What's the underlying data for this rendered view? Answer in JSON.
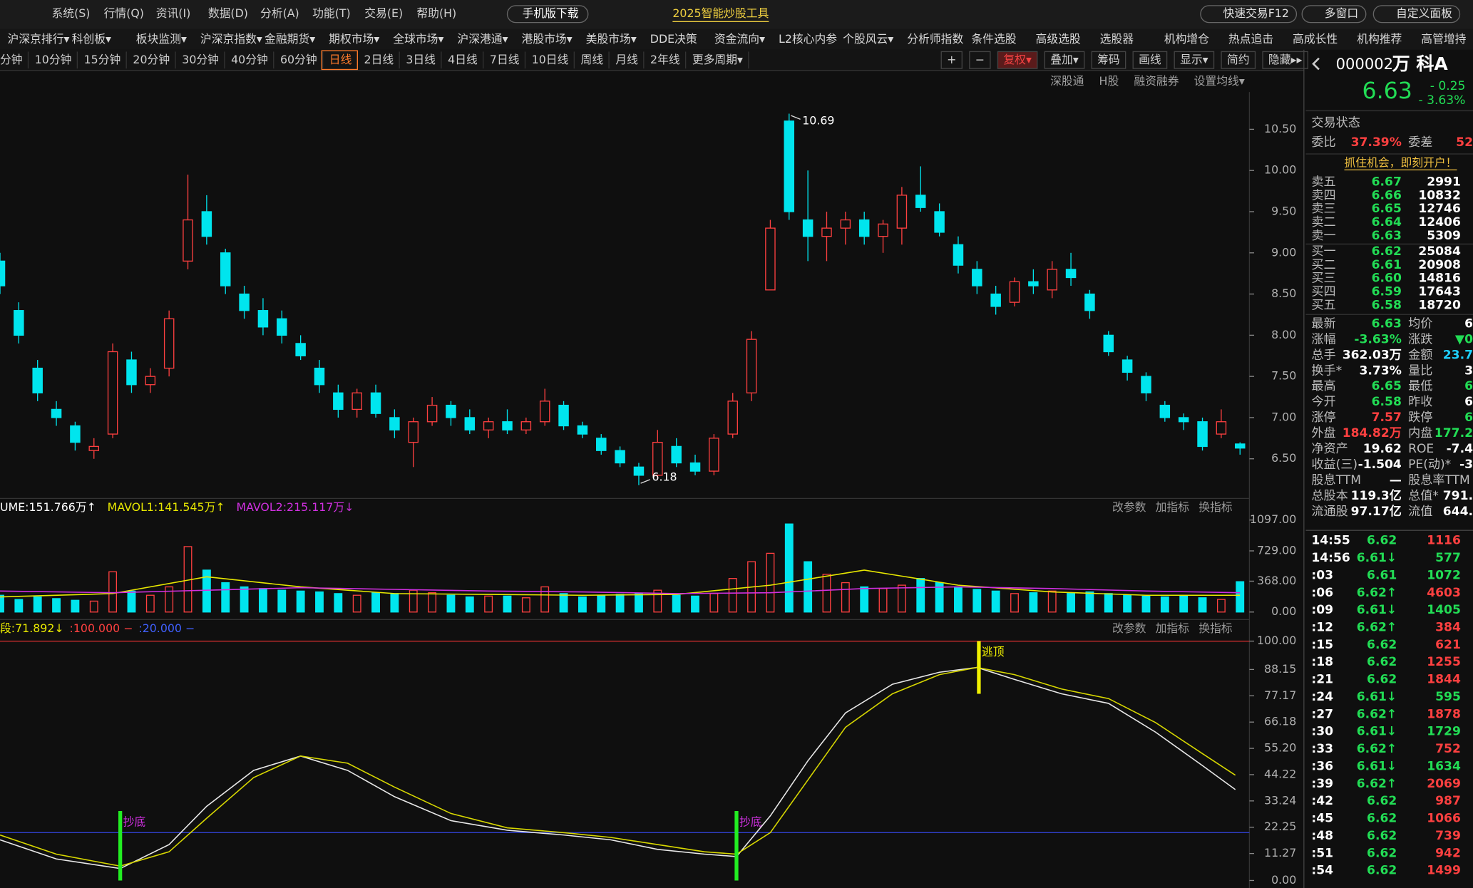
{
  "menu": [
    "系统(S)",
    "行情(Q)",
    "资讯(I)",
    "数据(D)",
    "分析(A)",
    "功能(T)",
    "交易(E)",
    "帮助(H)"
  ],
  "buttons": [
    "手机版下载",
    "2025智能炒股工具"
  ],
  "top_right": [
    "快速交易F12",
    "多窗口",
    "自定义面板"
  ],
  "nav": [
    "沪深京排行▾",
    "科创板▾",
    "板块监测▾",
    "沪深京指数▾",
    "金融期货▾",
    "期权市场▾",
    "全球市场▾",
    "沪深港通▾",
    "港股市场▾",
    "美股市场▾",
    "DDE决策",
    "资金流向▾",
    "L2核心内参",
    "个股风云▾",
    "分析师指数",
    "条件选股",
    "高级选股",
    "选股器",
    "机构增仓",
    "热点追击",
    "高成长性",
    "机构推荐",
    "高管增持"
  ],
  "periods": [
    "分钟",
    "10分钟",
    "15分钟",
    "20分钟",
    "30分钟",
    "40分钟",
    "60分钟",
    "日线",
    "2日线",
    "3日线",
    "4日线",
    "7日线",
    "10日线",
    "周线",
    "月线",
    "2年线",
    "更多周期▾"
  ],
  "active_period": 7,
  "tools": [
    "+",
    "−",
    "复权▾",
    "叠加▾",
    "筹码",
    "画线",
    "显示▾",
    "简约",
    "隐藏▸▸"
  ],
  "active_tool": 2,
  "chart_links": [
    "深股通",
    "H股",
    "融资融券",
    "设置均线▾"
  ],
  "panel_links": [
    "改参数",
    "加指标",
    "换指标"
  ],
  "quote": {
    "code": "000002",
    "name": "万 科A",
    "price": "6.63",
    "change": "- 0.25",
    "change_pct": "- 3.63%",
    "status": "交易状态",
    "ratio": [
      "委比",
      "37.39%",
      "委差",
      "52"
    ],
    "promo": "抓住机会，即刻开户！",
    "book": [
      [
        "卖五",
        "6.67",
        "2991"
      ],
      [
        "卖四",
        "6.66",
        "10832"
      ],
      [
        "卖三",
        "6.65",
        "12746"
      ],
      [
        "卖二",
        "6.64",
        "12406"
      ],
      [
        "卖一",
        "6.63",
        "5309"
      ],
      [
        "买一",
        "6.62",
        "25084"
      ],
      [
        "买二",
        "6.61",
        "20908"
      ],
      [
        "买三",
        "6.60",
        "14816"
      ],
      [
        "买四",
        "6.59",
        "17643"
      ],
      [
        "买五",
        "6.58",
        "18720"
      ]
    ],
    "stats": [
      [
        "最新",
        "6.63",
        "均价",
        "6"
      ],
      [
        "涨幅",
        "-3.63%",
        "涨跌",
        "▼0"
      ],
      [
        "总手",
        "362.03万",
        "金额",
        "23.7"
      ],
      [
        "换手*",
        "3.73%",
        "量比",
        "3"
      ],
      [
        "最高",
        "6.65",
        "最低",
        "6"
      ],
      [
        "今开",
        "6.58",
        "昨收",
        "6"
      ],
      [
        "涨停",
        "7.57",
        "跌停",
        "6"
      ],
      [
        "外盘",
        "184.82万",
        "内盘",
        "177.2"
      ],
      [
        "净资产",
        "19.62",
        "ROE",
        "-7.4"
      ],
      [
        "收益(三)",
        "-1.504",
        "PE(动)*",
        "-3"
      ],
      [
        "股息TTM",
        "—",
        "股息率TTM"
      ],
      [
        "总股本",
        "119.3亿",
        "总值*",
        "791."
      ],
      [
        "流通股",
        "97.17亿",
        "流值",
        "644."
      ]
    ],
    "stat_colors": [
      [
        "#22dd55",
        "#ffffff"
      ],
      [
        "#22dd55",
        "#22dd55"
      ],
      [
        "#ffffff",
        "#1fd0ff"
      ],
      [
        "#ffffff",
        "#ffffff"
      ],
      [
        "#22dd55",
        "#22dd55"
      ],
      [
        "#22dd55",
        "#ffffff"
      ],
      [
        "#ff4040",
        "#22dd55"
      ],
      [
        "#ff4040",
        "#22dd55"
      ],
      [
        "#ffffff",
        "#ffffff"
      ],
      [
        "#ffffff",
        "#ffffff"
      ],
      [
        "#ffffff",
        "#ffffff"
      ],
      [
        "#ffffff",
        "#ffffff"
      ],
      [
        "#ffffff",
        "#ffffff"
      ]
    ],
    "ticks": [
      {
        "time": "14:55",
        "price": "6.62",
        "volume": "1116",
        "color": "#ff4040"
      },
      {
        "time": "14:56",
        "price": "6.61↓",
        "volume": "577",
        "color": "#22dd55"
      },
      {
        "time": ":03",
        "price": "6.61",
        "volume": "1072",
        "color": "#22dd55"
      },
      {
        "time": ":06",
        "price": "6.62↑",
        "volume": "4603",
        "color": "#ff4040"
      },
      {
        "time": ":09",
        "price": "6.61↓",
        "volume": "1405",
        "color": "#22dd55"
      },
      {
        "time": ":12",
        "price": "6.62↑",
        "volume": "384",
        "color": "#ff4040"
      },
      {
        "time": ":15",
        "price": "6.62",
        "volume": "621",
        "color": "#ff4040"
      },
      {
        "time": ":18",
        "price": "6.62",
        "volume": "1255",
        "color": "#ff4040"
      },
      {
        "time": ":21",
        "price": "6.62",
        "volume": "1844",
        "color": "#ff4040"
      },
      {
        "time": ":24",
        "price": "6.61↓",
        "volume": "595",
        "color": "#22dd55"
      },
      {
        "time": ":27",
        "price": "6.62↑",
        "volume": "1878",
        "color": "#ff4040"
      },
      {
        "time": ":30",
        "price": "6.61↓",
        "volume": "1729",
        "color": "#22dd55"
      },
      {
        "time": ":33",
        "price": "6.62↑",
        "volume": "752",
        "color": "#ff4040"
      },
      {
        "time": ":36",
        "price": "6.61↓",
        "volume": "1634",
        "color": "#22dd55"
      },
      {
        "time": ":39",
        "price": "6.62↑",
        "volume": "2069",
        "color": "#ff4040"
      },
      {
        "time": ":42",
        "price": "6.62",
        "volume": "987",
        "color": "#ff4040"
      },
      {
        "time": ":45",
        "price": "6.62",
        "volume": "1066",
        "color": "#ff4040"
      },
      {
        "time": ":48",
        "price": "6.62",
        "volume": "739",
        "color": "#ff4040"
      },
      {
        "time": ":51",
        "price": "6.62",
        "volume": "942",
        "color": "#ff4040"
      },
      {
        "time": ":54",
        "price": "6.62",
        "volume": "1499",
        "color": "#ff4040"
      }
    ]
  },
  "chart_data": [
    {
      "type": "candlestick",
      "up_color": "#ff4040",
      "down_color": "#00e5ee",
      "xlim": [
        0,
        66
      ],
      "ylim": [
        6.03,
        10.93
      ],
      "yticks": [
        {
          "value": 6.5,
          "label": "6.50"
        },
        {
          "value": 7,
          "label": "7.00"
        },
        {
          "value": 7.5,
          "label": "7.50"
        },
        {
          "value": 8,
          "label": "8.00"
        },
        {
          "value": 8.5,
          "label": "8.50"
        },
        {
          "value": 9,
          "label": "9.00"
        },
        {
          "value": 9.5,
          "label": "9.50"
        },
        {
          "value": 10,
          "label": "10.00"
        },
        {
          "value": 10.5,
          "label": "10.50"
        }
      ],
      "candles": [
        [
          8.9,
          9.0,
          8.5,
          8.6
        ],
        [
          8.3,
          8.4,
          7.9,
          8.0
        ],
        [
          7.6,
          7.7,
          7.2,
          7.3
        ],
        [
          7.1,
          7.2,
          6.9,
          7.0
        ],
        [
          6.9,
          6.95,
          6.6,
          6.7
        ],
        [
          6.6,
          6.75,
          6.5,
          6.65
        ],
        [
          6.8,
          7.9,
          6.75,
          7.8
        ],
        [
          7.7,
          7.8,
          7.3,
          7.4
        ],
        [
          7.4,
          7.6,
          7.3,
          7.5
        ],
        [
          7.6,
          8.3,
          7.5,
          8.2
        ],
        [
          8.9,
          9.95,
          8.8,
          9.4
        ],
        [
          9.5,
          9.7,
          9.1,
          9.2
        ],
        [
          9.0,
          9.05,
          8.5,
          8.6
        ],
        [
          8.5,
          8.6,
          8.2,
          8.3
        ],
        [
          8.3,
          8.45,
          8.0,
          8.1
        ],
        [
          8.2,
          8.3,
          7.9,
          8.0
        ],
        [
          7.9,
          8.0,
          7.7,
          7.75
        ],
        [
          7.6,
          7.7,
          7.3,
          7.4
        ],
        [
          7.3,
          7.4,
          7.0,
          7.1
        ],
        [
          7.1,
          7.35,
          7.0,
          7.3
        ],
        [
          7.3,
          7.4,
          7.0,
          7.05
        ],
        [
          7.0,
          7.1,
          6.75,
          6.85
        ],
        [
          6.7,
          7.0,
          6.4,
          6.95
        ],
        [
          6.95,
          7.25,
          6.9,
          7.15
        ],
        [
          7.15,
          7.2,
          6.9,
          7.0
        ],
        [
          7.0,
          7.1,
          6.8,
          6.85
        ],
        [
          6.85,
          7.0,
          6.75,
          6.95
        ],
        [
          6.95,
          7.1,
          6.8,
          6.85
        ],
        [
          6.85,
          7.0,
          6.8,
          6.95
        ],
        [
          6.95,
          7.35,
          6.9,
          7.2
        ],
        [
          7.15,
          7.2,
          6.85,
          6.9
        ],
        [
          6.9,
          6.95,
          6.75,
          6.8
        ],
        [
          6.75,
          6.8,
          6.55,
          6.6
        ],
        [
          6.6,
          6.65,
          6.4,
          6.45
        ],
        [
          6.4,
          6.45,
          6.18,
          6.3
        ],
        [
          6.3,
          6.85,
          6.25,
          6.7
        ],
        [
          6.65,
          6.75,
          6.4,
          6.45
        ],
        [
          6.45,
          6.55,
          6.3,
          6.35
        ],
        [
          6.35,
          6.8,
          6.3,
          6.75
        ],
        [
          6.8,
          7.3,
          6.75,
          7.2
        ],
        [
          7.3,
          8.05,
          7.2,
          7.95
        ],
        [
          8.55,
          9.4,
          8.55,
          9.3
        ],
        [
          10.6,
          10.69,
          9.4,
          9.5
        ],
        [
          9.4,
          10.0,
          8.9,
          9.2
        ],
        [
          9.2,
          9.5,
          8.9,
          9.3
        ],
        [
          9.3,
          9.5,
          9.1,
          9.4
        ],
        [
          9.4,
          9.5,
          9.1,
          9.2
        ],
        [
          9.2,
          9.4,
          9.0,
          9.35
        ],
        [
          9.3,
          9.8,
          9.1,
          9.7
        ],
        [
          9.7,
          10.05,
          9.5,
          9.55
        ],
        [
          9.5,
          9.6,
          9.2,
          9.25
        ],
        [
          9.1,
          9.2,
          8.75,
          8.85
        ],
        [
          8.8,
          8.9,
          8.5,
          8.6
        ],
        [
          8.5,
          8.6,
          8.25,
          8.35
        ],
        [
          8.4,
          8.7,
          8.35,
          8.65
        ],
        [
          8.65,
          8.8,
          8.5,
          8.6
        ],
        [
          8.55,
          8.9,
          8.45,
          8.8
        ],
        [
          8.8,
          9.0,
          8.6,
          8.7
        ],
        [
          8.5,
          8.55,
          8.2,
          8.3
        ],
        [
          8.0,
          8.05,
          7.75,
          7.8
        ],
        [
          7.7,
          7.75,
          7.45,
          7.55
        ],
        [
          7.5,
          7.55,
          7.2,
          7.3
        ],
        [
          7.15,
          7.2,
          6.95,
          7.0
        ],
        [
          7.0,
          7.05,
          6.85,
          6.95
        ],
        [
          6.95,
          7.0,
          6.6,
          6.65
        ],
        [
          6.8,
          7.1,
          6.75,
          6.95
        ],
        [
          6.68,
          6.7,
          6.55,
          6.63
        ]
      ],
      "annotations": [
        {
          "value": 10.69,
          "x": 42
        },
        {
          "value": 6.18,
          "x": 34
        }
      ]
    },
    {
      "type": "bar",
      "xlim": [
        0,
        66
      ],
      "ylim": [
        0,
        1097
      ],
      "yticks": [
        {
          "value": 0,
          "label": "0.00"
        },
        {
          "value": 368,
          "label": "368.00"
        },
        {
          "value": 729,
          "label": "729.00"
        },
        {
          "value": 1097,
          "label": "1097.00"
        }
      ],
      "values": [
        200,
        150,
        180,
        160,
        140,
        130,
        480,
        250,
        200,
        300,
        780,
        500,
        350,
        300,
        280,
        260,
        250,
        240,
        220,
        200,
        230,
        220,
        260,
        230,
        200,
        180,
        190,
        190,
        170,
        300,
        220,
        180,
        200,
        210,
        220,
        260,
        200,
        190,
        220,
        400,
        600,
        700,
        1050,
        600,
        450,
        350,
        300,
        280,
        320,
        400,
        350,
        300,
        270,
        250,
        220,
        230,
        250,
        230,
        240,
        220,
        200,
        190,
        180,
        200,
        170,
        150,
        362
      ],
      "legend": [
        "UME:151.766万↑"
      ],
      "legend_color": "#ffffff",
      "series": [
        {
          "name": "MAVOL1:141.545万↑",
          "color": "#e8e800",
          "x": [
            0,
            6,
            11,
            16,
            21,
            26,
            31,
            36,
            41,
            46,
            51,
            56,
            61,
            66
          ],
          "values": [
            180,
            220,
            420,
            300,
            220,
            210,
            200,
            210,
            320,
            500,
            320,
            240,
            200,
            200
          ]
        },
        {
          "name": "MAVOL2:215.117万↓",
          "color": "#d030e0",
          "x": [
            0,
            6,
            11,
            16,
            21,
            26,
            31,
            36,
            41,
            46,
            51,
            56,
            61,
            66
          ],
          "values": [
            250,
            230,
            260,
            290,
            270,
            250,
            240,
            220,
            230,
            280,
            300,
            280,
            250,
            230
          ]
        }
      ]
    },
    {
      "type": "line",
      "xlim": [
        0,
        66
      ],
      "ylim": [
        0,
        100
      ],
      "yticks": [
        {
          "value": 0,
          "label": "0.00"
        },
        11.27,
        22.25,
        33.24,
        44.22,
        {
          "value": 55.2,
          "label": "55.20"
        },
        66.18,
        77.17,
        88.15,
        {
          "value": 100,
          "label": "100.00"
        }
      ],
      "legend": [
        {
          "text": "段:71.892↓",
          "color": "#e8e800"
        },
        {
          "text": ":100.000 −",
          "color": "#ff4040"
        },
        {
          "text": ":20.000 −",
          "color": "#4060ff"
        }
      ],
      "hlines": [
        {
          "value": 100,
          "color": "#e03030"
        },
        {
          "value": 20,
          "color": "#3040d0"
        }
      ],
      "series": [
        {
          "color": "#e8e8e8",
          "x": [
            0,
            3,
            6.4,
            9,
            11,
            13.5,
            16,
            18.5,
            21,
            24,
            27,
            30,
            32.5,
            35,
            37.5,
            39.2,
            41,
            43,
            45,
            47.5,
            50,
            52,
            54,
            56.5,
            59,
            61.5,
            64,
            65.75
          ],
          "values": [
            17,
            9,
            5,
            15,
            31,
            46,
            52,
            46,
            35,
            25,
            21,
            19,
            17,
            13,
            11,
            10,
            27,
            50,
            70,
            82,
            87,
            89,
            84,
            78,
            74,
            62,
            48,
            38
          ]
        },
        {
          "color": "#d8d800",
          "x": [
            0,
            3,
            6.4,
            9,
            11,
            13.5,
            16,
            18.5,
            21,
            24,
            27,
            30,
            32.5,
            35,
            37.5,
            39.2,
            41,
            43,
            45,
            47.5,
            50,
            52,
            54,
            56.5,
            59,
            61.5,
            64,
            65.75
          ],
          "values": [
            19,
            11,
            6,
            12,
            26,
            43,
            52,
            49,
            39,
            28,
            22,
            20,
            18,
            15,
            12,
            11,
            20,
            42,
            64,
            78,
            86,
            89,
            86,
            80,
            76,
            66,
            53,
            44
          ]
        }
      ],
      "signals": [
        {
          "label": "抄底",
          "x": 6.4,
          "from": 0,
          "to": 29,
          "color": "#22ee22",
          "label_color": "#d030e0"
        },
        {
          "label": "抄底",
          "x": 39.2,
          "from": 0,
          "to": 29,
          "color": "#22ee22",
          "label_color": "#d030e0"
        },
        {
          "label": "逃顶",
          "x": 52.1,
          "from": 78,
          "to": 100,
          "color": "#f0f000",
          "label_color": "#f0f000"
        }
      ]
    }
  ]
}
